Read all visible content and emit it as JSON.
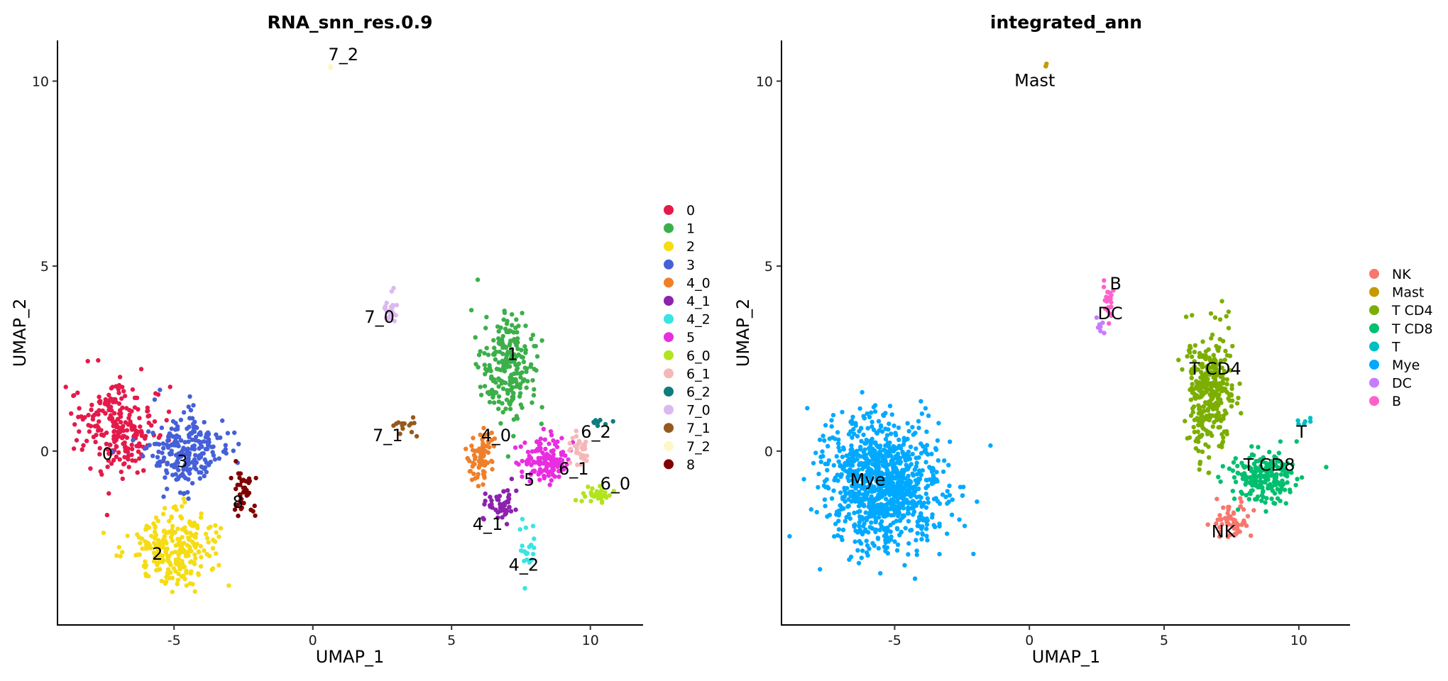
{
  "chart_data": [
    {
      "type": "scatter",
      "title": "RNA_snn_res.0.9",
      "xlabel": "UMAP_1",
      "ylabel": "UMAP_2",
      "xlim": [
        -9.2,
        11.9
      ],
      "ylim": [
        -4.7,
        11.1
      ],
      "xticks": [
        -5,
        0,
        5,
        10
      ],
      "yticks": [
        0,
        5,
        10
      ],
      "xtick_labels": [
        "-5",
        "0",
        "5",
        "10"
      ],
      "ytick_labels": [
        "0",
        "5",
        "10"
      ],
      "grid": false,
      "legend_position": "right",
      "groups": [
        {
          "name": "0",
          "color": "#E41A4A",
          "n": 240,
          "center": [
            -7.0,
            0.6
          ],
          "spread": [
            1.3,
            1.1
          ]
        },
        {
          "name": "1",
          "color": "#3CAF4A",
          "n": 230,
          "center": [
            7.0,
            2.3
          ],
          "spread": [
            0.9,
            1.2
          ]
        },
        {
          "name": "2",
          "color": "#F5DC14",
          "n": 260,
          "center": [
            -5.0,
            -2.6
          ],
          "spread": [
            1.4,
            0.9
          ]
        },
        {
          "name": "3",
          "color": "#4560D8",
          "n": 230,
          "center": [
            -4.6,
            0.0
          ],
          "spread": [
            1.3,
            0.9
          ]
        },
        {
          "name": "4_0",
          "color": "#F07F2A",
          "n": 80,
          "center": [
            6.1,
            -0.1
          ],
          "spread": [
            0.4,
            0.6
          ]
        },
        {
          "name": "4_1",
          "color": "#8C22AE",
          "n": 50,
          "center": [
            6.8,
            -1.5
          ],
          "spread": [
            0.5,
            0.4
          ]
        },
        {
          "name": "4_2",
          "color": "#38E4E4",
          "n": 20,
          "center": [
            7.7,
            -2.5
          ],
          "spread": [
            0.3,
            0.7
          ]
        },
        {
          "name": "5",
          "color": "#E82EE0",
          "n": 130,
          "center": [
            8.3,
            -0.3
          ],
          "spread": [
            0.8,
            0.6
          ]
        },
        {
          "name": "6_0",
          "color": "#B2E41E",
          "n": 35,
          "center": [
            10.3,
            -1.2
          ],
          "spread": [
            0.5,
            0.2
          ]
        },
        {
          "name": "6_1",
          "color": "#F5B8B8",
          "n": 30,
          "center": [
            9.6,
            0.1
          ],
          "spread": [
            0.3,
            0.5
          ]
        },
        {
          "name": "6_2",
          "color": "#107C7C",
          "n": 8,
          "center": [
            10.3,
            0.8
          ],
          "spread": [
            0.3,
            0.1
          ]
        },
        {
          "name": "7_0",
          "color": "#DCB8F0",
          "n": 25,
          "center": [
            2.8,
            3.8
          ],
          "spread": [
            0.2,
            0.5
          ]
        },
        {
          "name": "7_1",
          "color": "#965A1E",
          "n": 14,
          "center": [
            3.3,
            0.6
          ],
          "spread": [
            0.8,
            0.3
          ]
        },
        {
          "name": "7_2",
          "color": "#FFF6C8",
          "n": 3,
          "center": [
            0.65,
            10.4
          ],
          "spread": [
            0.05,
            0.05
          ]
        },
        {
          "name": "8",
          "color": "#800000",
          "n": 40,
          "center": [
            -2.5,
            -1.1
          ],
          "spread": [
            0.4,
            0.6
          ]
        }
      ],
      "cluster_labels": [
        {
          "text": "0",
          "x": -7.4,
          "y": -0.1
        },
        {
          "text": "1",
          "x": 7.2,
          "y": 2.6
        },
        {
          "text": "2",
          "x": -5.6,
          "y": -2.8
        },
        {
          "text": "3",
          "x": -4.7,
          "y": -0.3
        },
        {
          "text": "4_0",
          "x": 6.6,
          "y": 0.4
        },
        {
          "text": "4_1",
          "x": 6.3,
          "y": -2.0
        },
        {
          "text": "4_2",
          "x": 7.6,
          "y": -3.1
        },
        {
          "text": "5",
          "x": 7.8,
          "y": -0.8
        },
        {
          "text": "6_0",
          "x": 10.9,
          "y": -0.9
        },
        {
          "text": "6_1",
          "x": 9.4,
          "y": -0.5
        },
        {
          "text": "6_2",
          "x": 10.2,
          "y": 0.5
        },
        {
          "text": "7_0",
          "x": 2.4,
          "y": 3.6
        },
        {
          "text": "7_1",
          "x": 2.7,
          "y": 0.4
        },
        {
          "text": "7_2",
          "x": 1.1,
          "y": 10.7
        },
        {
          "text": "8",
          "x": -2.7,
          "y": -1.4
        }
      ]
    },
    {
      "type": "scatter",
      "title": "integrated_ann",
      "xlabel": "UMAP_1",
      "ylabel": "UMAP_2",
      "xlim": [
        -9.2,
        11.9
      ],
      "ylim": [
        -4.7,
        11.1
      ],
      "xticks": [
        -5,
        0,
        5,
        10
      ],
      "yticks": [
        0,
        5,
        10
      ],
      "xtick_labels": [
        "-5",
        "0",
        "5",
        "10"
      ],
      "ytick_labels": [
        "0",
        "5",
        "10"
      ],
      "grid": false,
      "legend_position": "right",
      "groups": [
        {
          "name": "NK",
          "color": "#F8766D",
          "n": 60,
          "center": [
            7.5,
            -1.9
          ],
          "spread": [
            0.6,
            0.4
          ]
        },
        {
          "name": "Mast",
          "color": "#C49A00",
          "n": 3,
          "center": [
            0.65,
            10.4
          ],
          "spread": [
            0.05,
            0.05
          ]
        },
        {
          "name": "T CD4",
          "color": "#7CAE00",
          "n": 330,
          "center": [
            6.7,
            1.6
          ],
          "spread": [
            0.8,
            1.5
          ]
        },
        {
          "name": "T CD8",
          "color": "#00BF6F",
          "n": 200,
          "center": [
            8.7,
            -0.7
          ],
          "spread": [
            1.1,
            0.6
          ]
        },
        {
          "name": "T",
          "color": "#00BFC4",
          "n": 6,
          "center": [
            10.3,
            0.8
          ],
          "spread": [
            0.3,
            0.1
          ]
        },
        {
          "name": "Mye",
          "color": "#00A9FF",
          "n": 1000,
          "center": [
            -5.4,
            -0.9
          ],
          "spread": [
            1.9,
            1.5
          ]
        },
        {
          "name": "DC",
          "color": "#C77CFF",
          "n": 10,
          "center": [
            2.6,
            3.4
          ],
          "spread": [
            0.15,
            0.15
          ]
        },
        {
          "name": "B",
          "color": "#FF61CC",
          "n": 25,
          "center": [
            2.9,
            4.0
          ],
          "spread": [
            0.2,
            0.4
          ]
        }
      ],
      "cluster_labels": [
        {
          "text": "NK",
          "x": 7.2,
          "y": -2.2
        },
        {
          "text": "Mast",
          "x": 0.2,
          "y": 10.0
        },
        {
          "text": "T CD4",
          "x": 6.9,
          "y": 2.2
        },
        {
          "text": "T CD8",
          "x": 8.9,
          "y": -0.4
        },
        {
          "text": "T",
          "x": 10.1,
          "y": 0.5
        },
        {
          "text": "Mye",
          "x": -6.0,
          "y": -0.8
        },
        {
          "text": "DC",
          "x": 3.0,
          "y": 3.7
        },
        {
          "text": "B",
          "x": 3.2,
          "y": 4.5
        }
      ]
    }
  ]
}
